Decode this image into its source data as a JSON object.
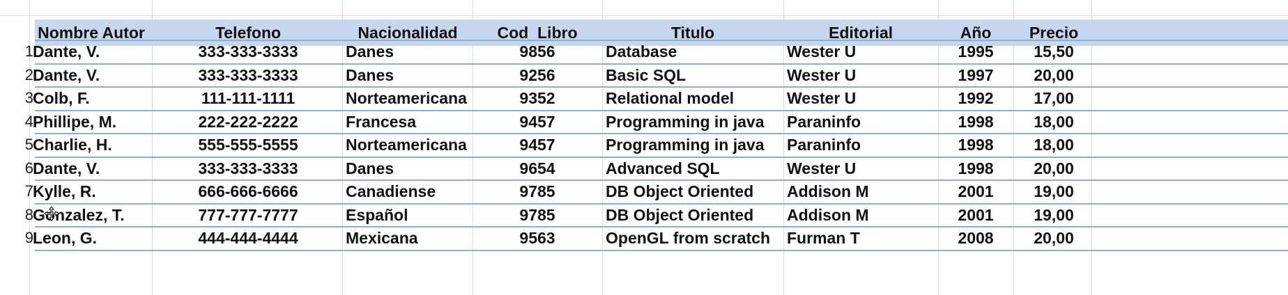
{
  "columns": [
    "Nombre Autor",
    "Telefono",
    "Nacionalidad",
    "Cod_Libro",
    "Titulo",
    "Editorial",
    "Año",
    "Precio"
  ],
  "rows": [
    {
      "num": "1",
      "cells": [
        "Dante, V.",
        "333-333-3333",
        "Danes",
        "9856",
        "Database",
        "Wester U",
        "1995",
        "15,50"
      ]
    },
    {
      "num": "2",
      "cells": [
        "Dante, V.",
        "333-333-3333",
        "Danes",
        "9256",
        "Basic SQL",
        "Wester U",
        "1997",
        "20,00"
      ]
    },
    {
      "num": "3",
      "cells": [
        "Colb, F.",
        "111-111-1111",
        "Norteamericana",
        "9352",
        "Relational model",
        "Wester U",
        "1992",
        "17,00"
      ]
    },
    {
      "num": "4",
      "cells": [
        "Phillipe, M.",
        "222-222-2222",
        "Francesa",
        "9457",
        "Programming in java",
        "Paraninfo",
        "1998",
        "18,00"
      ]
    },
    {
      "num": "5",
      "cells": [
        "Charlie, H.",
        "555-555-5555",
        "Norteamericana",
        "9457",
        "Programming in java",
        "Paraninfo",
        "1998",
        "18,00"
      ]
    },
    {
      "num": "6",
      "cells": [
        "Dante, V.",
        "333-333-3333",
        "Danes",
        "9654",
        "Advanced SQL",
        "Wester U",
        "1998",
        "20,00"
      ]
    },
    {
      "num": "7",
      "cells": [
        "Kylle, R.",
        "666-666-6666",
        "Canadiense",
        "9785",
        "DB Object Oriented",
        "Addison M",
        "2001",
        "19,00"
      ]
    },
    {
      "num": "8",
      "cells": [
        "Gonzalez, T.",
        "777-777-7777",
        "Español",
        "9785",
        "DB Object Oriented",
        "Addison M",
        "2001",
        "19,00"
      ]
    },
    {
      "num": "9",
      "cells": [
        "Leon, G.",
        "444-444-4444",
        "Mexicana",
        "9563",
        "OpenGL from scratch",
        "Furman T",
        "2008",
        "20,00"
      ]
    }
  ],
  "colors": {
    "header_fill": "#c6d7ee",
    "row_separator": "#8eacd8",
    "gridline": "#dcdcdc"
  },
  "icons": {
    "cursor": "move-cursor-icon"
  }
}
